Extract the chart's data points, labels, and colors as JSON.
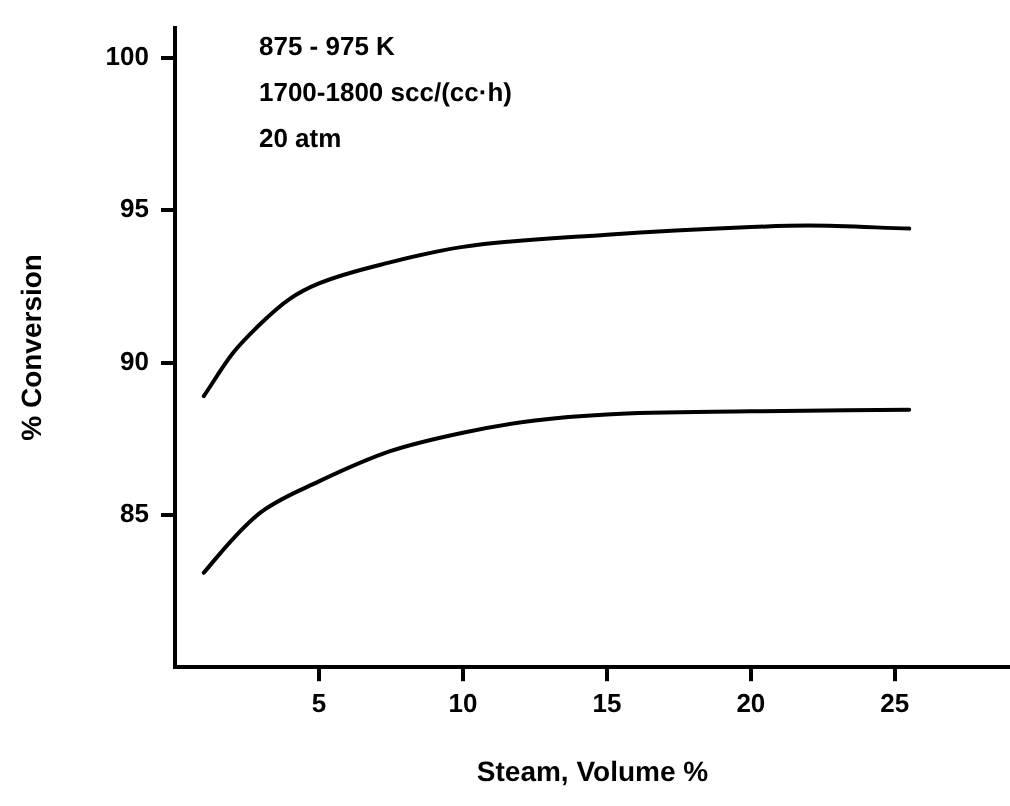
{
  "chart_data": {
    "type": "line",
    "xlabel": "Steam, Volume %",
    "ylabel": "% Conversion",
    "annotations": [
      "875 - 975 K",
      "1700-1800 scc/(cc·h)",
      "20 atm"
    ],
    "xlim": [
      0,
      29
    ],
    "xticks": [
      5,
      10,
      15,
      20,
      25
    ],
    "ylim": [
      80,
      101
    ],
    "yticks": [
      85,
      90,
      95,
      100
    ],
    "grid": false,
    "legend": false,
    "marker": "none",
    "line_style": "solid",
    "series": [
      {
        "color": "#000000",
        "x": [
          1,
          2,
          3,
          4,
          5,
          7.5,
          10,
          15,
          20,
          22,
          25.5
        ],
        "values": [
          88.9,
          90.3,
          91.3,
          92.1,
          92.6,
          93.3,
          93.8,
          94.2,
          94.45,
          94.5,
          94.4
        ]
      },
      {
        "color": "#000000",
        "x": [
          1,
          2,
          3,
          5,
          7.5,
          10,
          12.5,
          15,
          20,
          25.5
        ],
        "values": [
          83.1,
          84.2,
          85.1,
          86.1,
          87.1,
          87.7,
          88.1,
          88.3,
          88.4,
          88.45
        ]
      }
    ]
  }
}
